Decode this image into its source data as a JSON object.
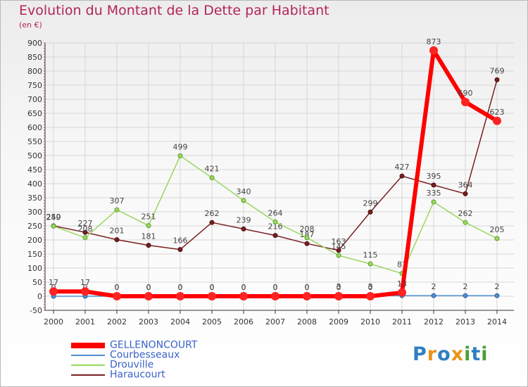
{
  "title": "Evolution du Montant de la Dette par Habitant",
  "unit": "(en €)",
  "logo": {
    "letters": [
      "P",
      "r",
      "o",
      "x",
      "i",
      "t",
      "i"
    ],
    "colors": [
      "#2f7fc1",
      "#e8941a",
      "#2f7fc1",
      "#e8941a",
      "#4c9f38",
      "#2f7fc1",
      "#4c9f38"
    ]
  },
  "chart_data": {
    "type": "line",
    "x": [
      2000,
      2001,
      2002,
      2003,
      2004,
      2005,
      2006,
      2007,
      2008,
      2009,
      2010,
      2011,
      2012,
      2013,
      2014
    ],
    "ylim": [
      -50,
      900
    ],
    "yticks": [
      -50,
      0,
      50,
      100,
      150,
      200,
      250,
      300,
      350,
      400,
      450,
      500,
      550,
      600,
      650,
      700,
      750,
      800,
      850,
      900
    ],
    "grid": true,
    "legend_position": "bottom-left",
    "series": [
      {
        "name": "GELLENONCOURT",
        "color": "#ff0000",
        "values": [
          17,
          17,
          0,
          0,
          0,
          0,
          0,
          0,
          0,
          0,
          0,
          13,
          873,
          690,
          623
        ]
      },
      {
        "name": "Courbesseaux",
        "color": "#4f8ed0",
        "values": [
          0,
          0,
          0,
          0,
          0,
          0,
          0,
          0,
          0,
          3,
          3,
          2,
          2,
          2,
          2
        ]
      },
      {
        "name": "Drouville",
        "color": "#9ad760",
        "values": [
          249,
          208,
          307,
          251,
          499,
          421,
          340,
          264,
          208,
          145,
          115,
          81,
          335,
          262,
          205
        ]
      },
      {
        "name": "Haraucourt",
        "color": "#7a1f20",
        "values": [
          250,
          227,
          201,
          181,
          166,
          262,
          239,
          216,
          187,
          163,
          299,
          427,
          395,
          364,
          769
        ]
      }
    ]
  }
}
